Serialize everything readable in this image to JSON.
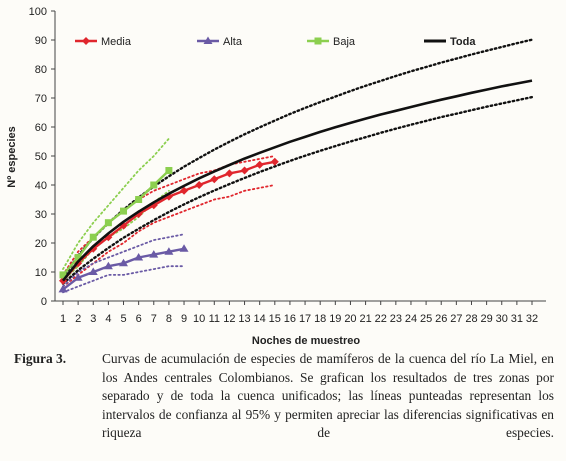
{
  "chart_data": {
    "type": "line",
    "xlabel": "Noches de muestreo",
    "ylabel": "Nº especies",
    "x_ticks": [
      1,
      2,
      3,
      4,
      5,
      6,
      7,
      8,
      9,
      10,
      11,
      12,
      13,
      14,
      15,
      16,
      17,
      18,
      19,
      20,
      21,
      22,
      23,
      24,
      25,
      26,
      27,
      28,
      29,
      30,
      31,
      32
    ],
    "y_ticks": [
      0,
      10,
      20,
      30,
      40,
      50,
      60,
      70,
      80,
      90,
      100
    ],
    "xlim": [
      1,
      32
    ],
    "ylim": [
      0,
      100
    ],
    "grid": false,
    "legend_position": "top",
    "series": [
      {
        "name": "Media",
        "color": "#e0262d",
        "marker": "diamond",
        "line": "solid",
        "x": [
          1,
          2,
          3,
          4,
          5,
          6,
          7,
          8,
          9,
          10,
          11,
          12,
          13,
          14,
          15
        ],
        "y": [
          7,
          13,
          18,
          22,
          26,
          30,
          33,
          36,
          38,
          40,
          42,
          44,
          45,
          47,
          48
        ],
        "ci_upper": [
          9,
          17,
          22,
          27,
          31,
          35,
          38,
          40,
          42,
          44,
          45,
          47,
          48,
          49,
          50
        ],
        "ci_lower": [
          5,
          9,
          13,
          17,
          20,
          24,
          27,
          29,
          31,
          33,
          35,
          36,
          38,
          39,
          40
        ]
      },
      {
        "name": "Alta",
        "color": "#6a5aa5",
        "marker": "triangle",
        "line": "solid",
        "x": [
          1,
          2,
          3,
          4,
          5,
          6,
          7,
          8,
          9
        ],
        "y": [
          4,
          8,
          10,
          12,
          13,
          15,
          16,
          17,
          18
        ],
        "ci_upper": [
          5,
          10,
          13,
          15,
          17,
          19,
          21,
          22,
          23
        ],
        "ci_lower": [
          3,
          5,
          7,
          9,
          9,
          10,
          11,
          12,
          12
        ]
      },
      {
        "name": "Baja",
        "color": "#8ccf4f",
        "marker": "square",
        "line": "solid",
        "x": [
          1,
          2,
          3,
          4,
          5,
          6,
          7,
          8
        ],
        "y": [
          9,
          15,
          22,
          27,
          31,
          35,
          40,
          45
        ],
        "ci_upper": [
          11,
          20,
          27,
          33,
          39,
          45,
          50,
          56
        ],
        "ci_lower": [
          7,
          12,
          18,
          22,
          25,
          29,
          34,
          38
        ]
      },
      {
        "name": "Toda",
        "color": "#111111",
        "marker": "none",
        "line": "solid",
        "x": [
          1,
          2,
          3,
          4,
          5,
          6,
          7,
          8,
          9,
          10,
          11,
          12,
          13,
          14,
          15,
          16,
          17,
          18,
          19,
          20,
          21,
          22,
          23,
          24,
          25,
          26,
          27,
          28,
          29,
          30,
          31,
          32
        ],
        "y": [
          7.0,
          13.6,
          18.9,
          23.3,
          27.3,
          30.8,
          34.0,
          37.0,
          39.7,
          42.3,
          44.7,
          46.9,
          49.1,
          51.1,
          53.0,
          54.9,
          56.6,
          58.3,
          59.9,
          61.4,
          62.9,
          64.3,
          65.6,
          66.9,
          68.2,
          69.4,
          70.6,
          71.8,
          72.9,
          74.0,
          75.0,
          76.0
        ],
        "ci_upper": [
          8.0,
          15.6,
          21.8,
          26.9,
          31.5,
          35.7,
          39.5,
          43.0,
          46.3,
          49.3,
          52.2,
          54.9,
          57.5,
          59.9,
          62.2,
          64.5,
          66.6,
          68.6,
          70.5,
          72.4,
          74.2,
          75.9,
          77.6,
          79.2,
          80.7,
          82.2,
          83.6,
          85.0,
          86.3,
          87.6,
          88.9,
          90.1
        ],
        "ci_lower": [
          6.0,
          10.6,
          14.6,
          18.3,
          21.8,
          24.9,
          27.9,
          30.7,
          33.3,
          35.8,
          38.1,
          40.3,
          42.4,
          44.5,
          46.4,
          48.3,
          50.1,
          51.8,
          53.4,
          55.0,
          56.5,
          58.0,
          59.4,
          60.8,
          62.1,
          63.4,
          64.6,
          65.8,
          67.0,
          68.1,
          69.2,
          70.3
        ]
      }
    ]
  },
  "caption": {
    "label": "Figura 3.",
    "text": "Curvas de acumulación de especies de mamíferos de la cuenca del río La Miel, en los Andes centrales Colombianos. Se grafican los resultados de tres zonas por separado y de toda la cuenca unificados; las líneas punteadas representan los intervalos de confianza al 95% y permiten apreciar las diferencias significativas en riqueza de especies."
  }
}
